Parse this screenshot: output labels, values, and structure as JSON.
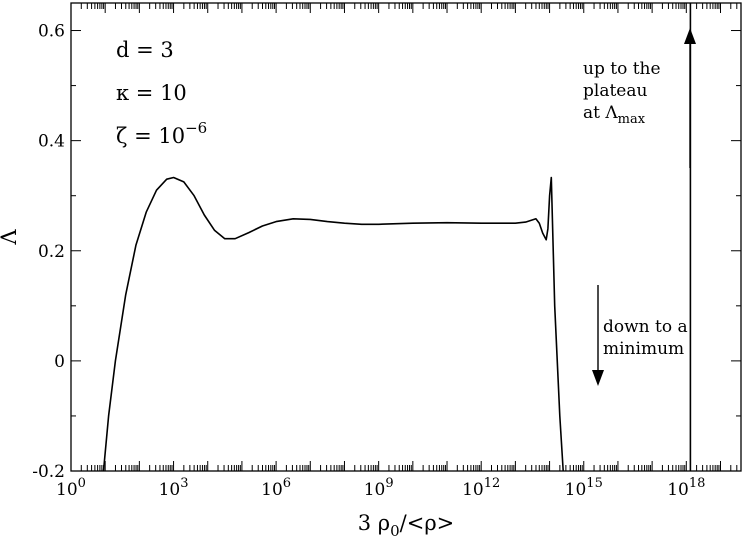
{
  "chart_data": {
    "type": "line",
    "title": "",
    "xlabel": {
      "main": "3 ρ",
      "sub": "0",
      "tail": "/<ρ>"
    },
    "ylabel": "Λ",
    "x_scale": "log10",
    "x_exponent_range": [
      0,
      19.6
    ],
    "ylim": [
      -0.2,
      0.65
    ],
    "x_ticks": [
      {
        "base": "10",
        "exp": "0",
        "value": 0
      },
      {
        "base": "10",
        "exp": "3",
        "value": 3
      },
      {
        "base": "10",
        "exp": "6",
        "value": 6
      },
      {
        "base": "10",
        "exp": "9",
        "value": 9
      },
      {
        "base": "10",
        "exp": "12",
        "value": 12
      },
      {
        "base": "10",
        "exp": "15",
        "value": 15
      },
      {
        "base": "10",
        "exp": "18",
        "value": 18
      }
    ],
    "y_ticks": [
      {
        "label": "-0.2",
        "value": -0.2
      },
      {
        "label": "0",
        "value": 0
      },
      {
        "label": "0.2",
        "value": 0.2
      },
      {
        "label": "0.4",
        "value": 0.4
      },
      {
        "label": "0.6",
        "value": 0.6
      }
    ],
    "series": [
      {
        "x_log10": [
          0.95,
          1.1,
          1.3,
          1.6,
          1.9,
          2.2,
          2.5,
          2.8,
          3.0,
          3.3,
          3.6,
          3.9,
          4.2,
          4.5,
          4.8,
          5.2,
          5.6,
          6.0,
          6.5,
          7.0,
          7.5,
          8.0,
          8.5,
          9.0,
          10.0,
          11.0,
          12.0,
          13.0,
          13.3,
          13.5,
          13.6,
          13.7,
          13.8,
          13.9,
          13.95,
          14.0,
          14.05,
          14.15,
          14.3,
          14.4
        ],
        "y": [
          -0.2,
          -0.1,
          0.0,
          0.12,
          0.21,
          0.27,
          0.31,
          0.33,
          0.333,
          0.325,
          0.3,
          0.265,
          0.237,
          0.222,
          0.222,
          0.233,
          0.245,
          0.253,
          0.258,
          0.257,
          0.253,
          0.25,
          0.248,
          0.248,
          0.25,
          0.251,
          0.25,
          0.25,
          0.252,
          0.256,
          0.258,
          0.25,
          0.232,
          0.22,
          0.24,
          0.3,
          0.333,
          0.1,
          -0.1,
          -0.2
        ]
      },
      {
        "x_log10": [
          18.12,
          18.12
        ],
        "y": [
          -0.2,
          0.65
        ]
      }
    ],
    "annotations": {
      "params": [
        {
          "sym": "d",
          "rel": " = 3",
          "sup": ""
        },
        {
          "sym": "κ",
          "rel": " = 10",
          "sup": ""
        },
        {
          "sym": "ζ",
          "rel": " = 10",
          "sup": "−6"
        }
      ],
      "up_note": {
        "line1": "up to the",
        "line2": "plateau",
        "line3_pre": "at Λ",
        "line3_sub": "max"
      },
      "down_note": {
        "line1": "down to a",
        "line2": "minimum"
      }
    }
  }
}
